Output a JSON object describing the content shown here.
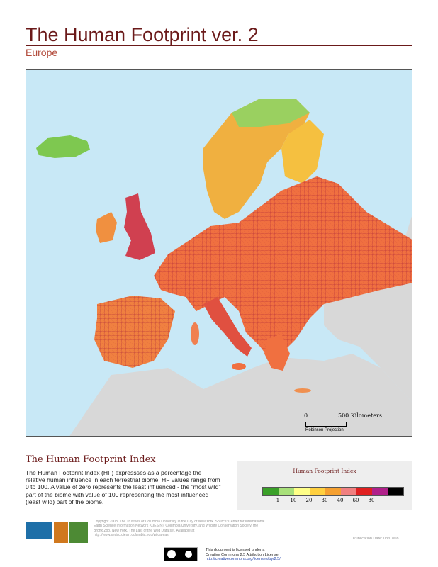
{
  "header": {
    "title": "The Human Footprint ver. 2",
    "subtitle": "Europe"
  },
  "map": {
    "region": "Europe",
    "colors": {
      "water": "#c8e8f6",
      "outside_land": "#d8d8d8",
      "border": "#555555"
    },
    "scale": {
      "zero": "0",
      "distance": "500 Kilometers",
      "projection": "Robinson Projection"
    }
  },
  "index_section": {
    "title": "The Human Footprint Index",
    "description": "The Human Footprint Index (HF) expressses as a percentage the relative human influence in each terrestrial biome. HF values range from 0 to 100. A value of zero represents the least influenced - the \"most wild\" part of the biome with value of 100 representing the most influenced (least wild) part of the biome."
  },
  "legend": {
    "title": "Human Footprint Index",
    "colors": [
      "#3aa028",
      "#a8e07a",
      "#ffff88",
      "#ffd040",
      "#f5a030",
      "#f08080",
      "#e02020",
      "#b0208a",
      "#000000"
    ],
    "ticks": [
      "1",
      "10",
      "20",
      "30",
      "40",
      "60",
      "80"
    ]
  },
  "footer": {
    "copyright": "Copyright 2008. The Trustees of Columbia University in the City of New York. Source: Center for International Earth Science Information Network (CIESIN), Columbia University, and Wildlife Conservation Society, the Bronx Zoo, New York. The Last of the Wild Data set. Available at http://www.sedac.ciesin.columbia.edu/wildareas",
    "publication_date": "Publication Date: 03/07/08",
    "license_line1": "This document is licensed under a",
    "license_line2": "Creative Commons 2.5 Attribution License",
    "license_url": "http://creativecommons.org/licenses/by/2.5/",
    "logos": [
      "CIESIN",
      "Wildlife Conservation Society"
    ]
  }
}
